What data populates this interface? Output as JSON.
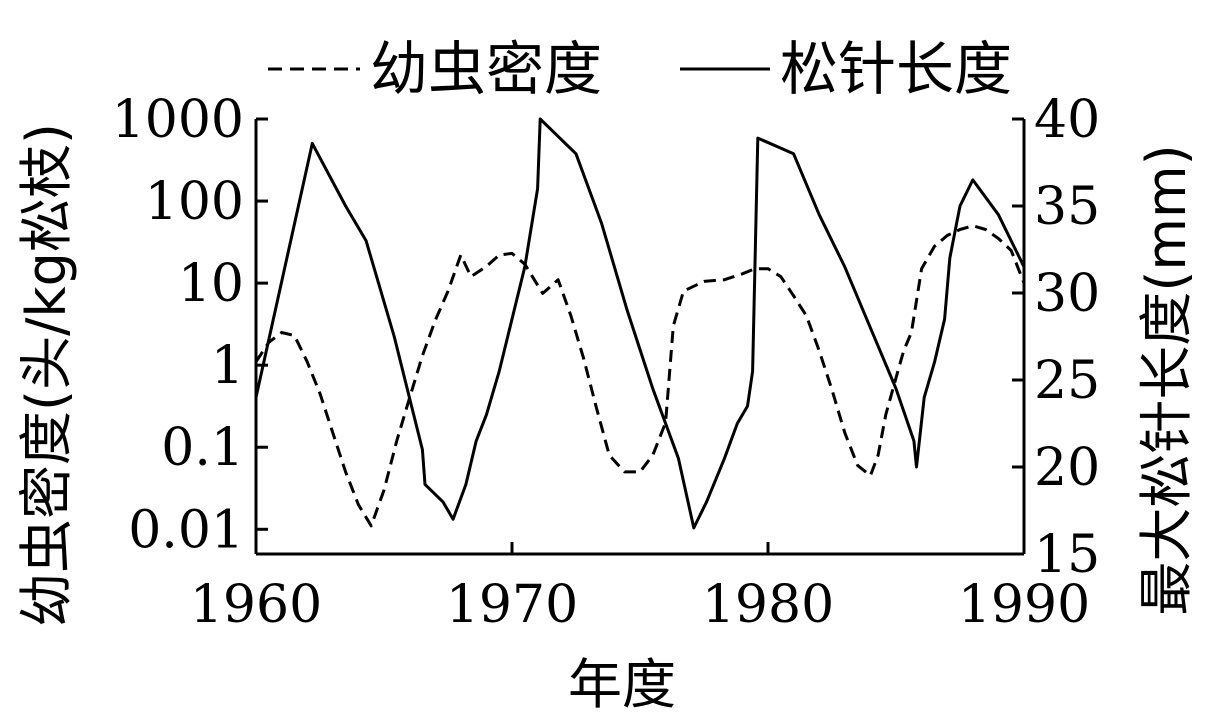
{
  "chart_data": {
    "type": "line",
    "xlabel": "年度",
    "ylabel_left": "幼虫密度(头/kg松枝)",
    "ylabel_right": "最大松针长度(mm)",
    "xlim": [
      1960,
      1990
    ],
    "ylim_left": [
      0.005,
      1000
    ],
    "y_left_scale": "log",
    "ylim_right": [
      15,
      40
    ],
    "x_ticks": [
      1960,
      1970,
      1980,
      1990
    ],
    "x_tick_labels": [
      "1960",
      "1970",
      "1980",
      "1990"
    ],
    "y_left_ticks": [
      1000,
      100,
      10,
      1,
      0.1,
      0.01
    ],
    "y_left_tick_labels": [
      "1000",
      "100",
      "10",
      "1",
      "0.1",
      "0.01"
    ],
    "y_right_ticks": [
      40,
      35,
      30,
      25,
      20,
      15
    ],
    "y_right_tick_labels": [
      "40",
      "35",
      "30",
      "25",
      "20",
      "15"
    ],
    "legend_position": "top",
    "grid": false,
    "series": [
      {
        "name": "幼虫密度",
        "axis": "left",
        "style": "dashed",
        "points": [
          [
            1960,
            1.1
          ],
          [
            1960.5,
            1.9
          ],
          [
            1961,
            2.5
          ],
          [
            1961.5,
            2.3
          ],
          [
            1962,
            1.1
          ],
          [
            1962.5,
            0.45
          ],
          [
            1963,
            0.15
          ],
          [
            1963.5,
            0.05
          ],
          [
            1964,
            0.02
          ],
          [
            1964.5,
            0.011
          ],
          [
            1965,
            0.03
          ],
          [
            1965.5,
            0.12
          ],
          [
            1966,
            0.4
          ],
          [
            1966.5,
            1.3
          ],
          [
            1967,
            3.5
          ],
          [
            1967.5,
            8
          ],
          [
            1968,
            22
          ],
          [
            1968.4,
            12
          ],
          [
            1969,
            16
          ],
          [
            1969.5,
            22
          ],
          [
            1970,
            23
          ],
          [
            1970.5,
            17
          ],
          [
            1971.2,
            7.5
          ],
          [
            1971.8,
            11
          ],
          [
            1972.3,
            4
          ],
          [
            1972.8,
            1.2
          ],
          [
            1973.3,
            0.3
          ],
          [
            1973.8,
            0.08
          ],
          [
            1974.4,
            0.05
          ],
          [
            1975,
            0.05
          ],
          [
            1975.5,
            0.08
          ],
          [
            1976,
            0.2
          ],
          [
            1976.3,
            3
          ],
          [
            1976.7,
            8
          ],
          [
            1977.5,
            10.5
          ],
          [
            1978.3,
            11
          ],
          [
            1979,
            13
          ],
          [
            1979.5,
            15
          ],
          [
            1980,
            15
          ],
          [
            1980.5,
            12
          ],
          [
            1981,
            7
          ],
          [
            1981.5,
            4
          ],
          [
            1982,
            1.5
          ],
          [
            1982.5,
            0.5
          ],
          [
            1983,
            0.15
          ],
          [
            1983.5,
            0.06
          ],
          [
            1984,
            0.045
          ],
          [
            1984.3,
            0.08
          ],
          [
            1984.6,
            0.25
          ],
          [
            1985,
            0.7
          ],
          [
            1985.3,
            1.5
          ],
          [
            1985.6,
            2.5
          ],
          [
            1986,
            15
          ],
          [
            1986.5,
            28
          ],
          [
            1987,
            38
          ],
          [
            1987.5,
            45
          ],
          [
            1988,
            50
          ],
          [
            1988.5,
            45
          ],
          [
            1989,
            35
          ],
          [
            1989.5,
            25
          ],
          [
            1990,
            10
          ]
        ]
      },
      {
        "name": "松针长度",
        "axis": "right",
        "style": "solid",
        "points": [
          [
            1960,
            24
          ],
          [
            1962.2,
            38.6
          ],
          [
            1963.5,
            35
          ],
          [
            1964.3,
            33
          ],
          [
            1965.4,
            27.5
          ],
          [
            1966.5,
            21
          ],
          [
            1966.6,
            19
          ],
          [
            1967.3,
            18
          ],
          [
            1967.7,
            17
          ],
          [
            1968.2,
            19
          ],
          [
            1968.6,
            21.5
          ],
          [
            1969,
            23
          ],
          [
            1969.5,
            25.5
          ],
          [
            1970,
            28.5
          ],
          [
            1970.5,
            31.5
          ],
          [
            1971,
            36
          ],
          [
            1971.1,
            40
          ],
          [
            1972.5,
            38
          ],
          [
            1973.5,
            34
          ],
          [
            1974.5,
            29
          ],
          [
            1975.5,
            24.5
          ],
          [
            1976.5,
            20.5
          ],
          [
            1977.1,
            16.5
          ],
          [
            1977.6,
            18
          ],
          [
            1978.3,
            20.5
          ],
          [
            1978.8,
            22.5
          ],
          [
            1979.2,
            23.5
          ],
          [
            1979.4,
            25.5
          ],
          [
            1979.6,
            38.9
          ],
          [
            1981,
            38
          ],
          [
            1982,
            34.5
          ],
          [
            1983,
            31.5
          ],
          [
            1984,
            28
          ],
          [
            1985,
            24.5
          ],
          [
            1985.7,
            21.5
          ],
          [
            1985.8,
            20
          ],
          [
            1986.1,
            24
          ],
          [
            1986.5,
            26
          ],
          [
            1986.9,
            28.5
          ],
          [
            1987.1,
            32
          ],
          [
            1987.5,
            35
          ],
          [
            1988,
            36.5
          ],
          [
            1989,
            34.5
          ],
          [
            1990,
            31.5
          ]
        ]
      }
    ]
  }
}
